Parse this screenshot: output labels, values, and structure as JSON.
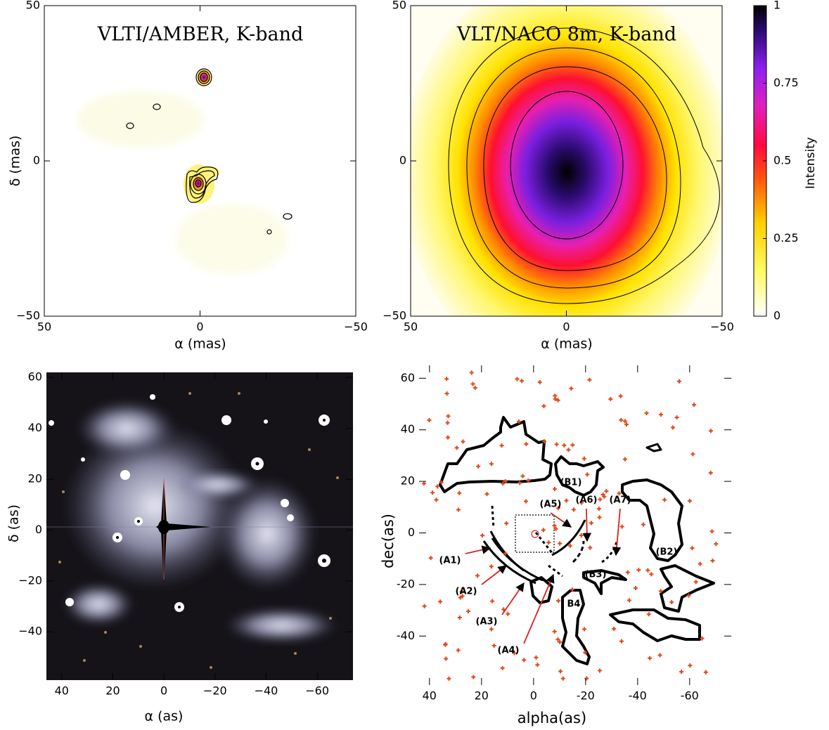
{
  "chart_data": [
    {
      "type": "heatmap",
      "title": "VLTI/AMBER, K-band",
      "x_label": "α (mas)",
      "y_label": "δ (mas)",
      "xlim": [
        50,
        -50
      ],
      "ylim": [
        -50,
        50
      ],
      "xticks": [
        50,
        0,
        {
          "value": -50,
          "label": "−50"
        }
      ],
      "yticks": [
        {
          "value": -50,
          "label": "−50"
        },
        0,
        50
      ]
    },
    {
      "type": "heatmap",
      "title": "VLT/NACO 8m, K-band",
      "x_label": "α (mas)",
      "xlim": [
        50,
        -50
      ],
      "ylim": [
        -50,
        50
      ],
      "xticks": [
        50,
        0,
        {
          "value": -50,
          "label": "−50"
        }
      ],
      "yticks": [
        {
          "value": -50,
          "label": "−50"
        },
        0,
        50
      ],
      "colorbar": {
        "label": "Intensity",
        "lim": [
          0,
          1
        ],
        "ticks": [
          0,
          0.25,
          0.5,
          0.75,
          1
        ]
      }
    },
    {
      "type": "image",
      "x_label": "α (as)",
      "y_label": "δ (as)",
      "xlim": [
        46,
        -74
      ],
      "ylim": [
        -59,
        62
      ],
      "xticks": [
        40,
        20,
        0,
        {
          "value": -20,
          "label": "−20"
        },
        {
          "value": -40,
          "label": "−40"
        },
        {
          "value": -60,
          "label": "−60"
        }
      ],
      "yticks": [
        {
          "value": -40,
          "label": "−40"
        },
        {
          "value": -20,
          "label": "−20"
        },
        0,
        20,
        40,
        60
      ]
    },
    {
      "type": "contour-map",
      "x_label": "alpha(as)",
      "y_label": "dec(as)",
      "xlim": [
        44,
        -76
      ],
      "ylim": [
        -59,
        65
      ],
      "xticks": [
        40,
        20,
        0,
        -20,
        -40,
        -60
      ],
      "yticks": [
        -40,
        -20,
        0,
        20,
        40,
        60
      ],
      "annotations": [
        "(A1)",
        "(A2)",
        "(A3)",
        "(A4)",
        "(A5)",
        "(A6)",
        "(A7)",
        "(B1)",
        "(B2)",
        "(B3)",
        "B4"
      ]
    }
  ]
}
